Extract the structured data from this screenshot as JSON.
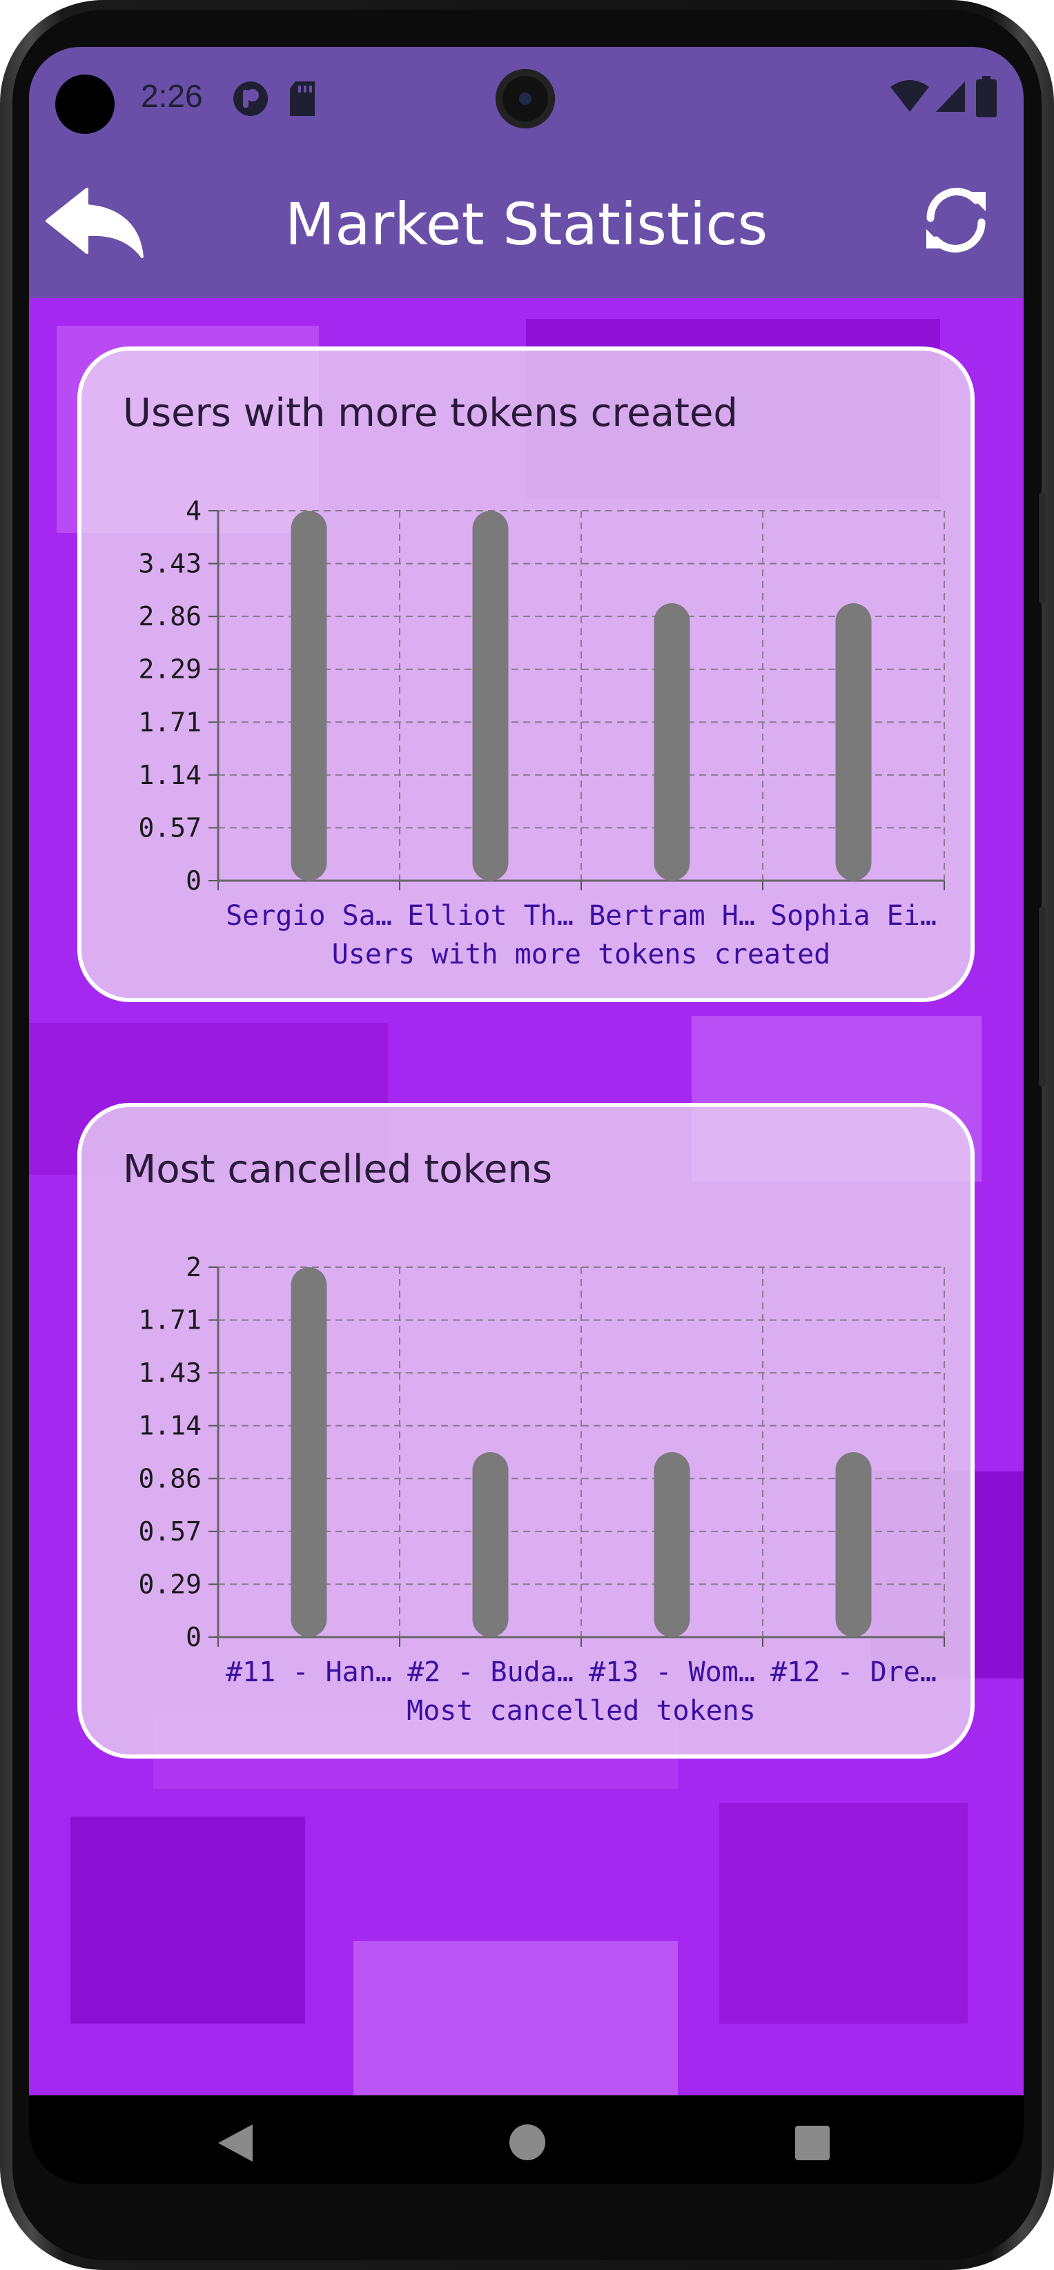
{
  "status_bar": {
    "time": "2:26",
    "icons": [
      "circle-badge-icon",
      "notification-app-icon",
      "sd-card-icon",
      "wifi-icon",
      "cell-signal-icon",
      "battery-icon"
    ]
  },
  "app_bar": {
    "title": "Market Statistics",
    "back_icon": "back-arrow-icon",
    "refresh_icon": "refresh-icon",
    "color": "#6a4fa8"
  },
  "nav_bar": {
    "icons": [
      "back-triangle-icon",
      "home-circle-icon",
      "recents-square-icon"
    ]
  },
  "colors": {
    "background": "#a528f0",
    "bar": "#7a7a7a",
    "category_text": "#3a0fa0"
  },
  "cards": [
    {
      "title": "Users with more tokens created",
      "chart": {
        "y_ticks": [
          "4",
          "3.43",
          "2.86",
          "2.29",
          "1.71",
          "1.14",
          "0.57",
          "0"
        ],
        "categories": [
          "Sergio Sa…",
          "Elliot Th…",
          "Bertram H…",
          "Sophia Ei…"
        ],
        "xlabel": "Users with more tokens created"
      }
    },
    {
      "title": "Most cancelled tokens",
      "chart": {
        "y_ticks": [
          "2",
          "1.71",
          "1.43",
          "1.14",
          "0.86",
          "0.57",
          "0.29",
          "0"
        ],
        "categories": [
          "#11 - Han…",
          "#2 - Buda…",
          "#13 - Wom…",
          "#12 - Dre…"
        ],
        "xlabel": "Most cancelled tokens"
      }
    }
  ],
  "chart_data": [
    {
      "type": "bar",
      "title": "Users with more tokens created",
      "categories": [
        "Sergio Sa…",
        "Elliot Th…",
        "Bertram H…",
        "Sophia Ei…"
      ],
      "values": [
        4,
        4,
        3,
        3
      ],
      "xlabel": "Users with more tokens created",
      "ylabel": "",
      "ylim": [
        0,
        4
      ],
      "grid": true
    },
    {
      "type": "bar",
      "title": "Most cancelled tokens",
      "categories": [
        "#11 - Han…",
        "#2 - Buda…",
        "#13 - Wom…",
        "#12 - Dre…"
      ],
      "values": [
        2,
        1,
        1,
        1
      ],
      "xlabel": "Most cancelled tokens",
      "ylabel": "",
      "ylim": [
        0,
        2
      ],
      "grid": true
    }
  ]
}
